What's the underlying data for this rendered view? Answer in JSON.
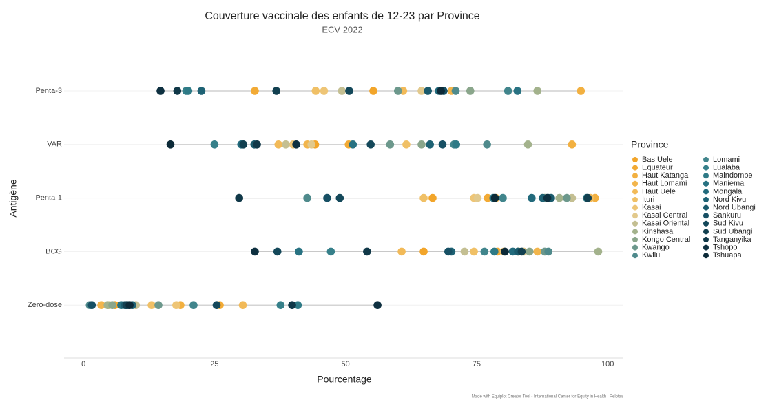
{
  "chart_data": {
    "type": "dot",
    "title": "Couverture vaccinale des enfants de 12-23 par Province",
    "subtitle": "ECV 2022",
    "x_label": "Pourcentage",
    "y_label": "Antigène",
    "legend_title": "Province",
    "caption": "Made with Equiplot Creator Tool - International Center for Equity in Health | Pelotas",
    "categories": [
      "Penta-3",
      "VAR",
      "Penta-1",
      "BCG",
      "Zero-dose"
    ],
    "xlim": [
      -3.7,
      103
    ],
    "xticks": [
      0,
      25,
      50,
      75,
      100
    ],
    "grid": true,
    "legend_position": "right",
    "series": [
      {
        "name": "Bas Uele",
        "color": "#f2a52a",
        "values": [
          55.3,
          44.2,
          66.6,
          64.9,
          6.0
        ]
      },
      {
        "name": "Equateur",
        "color": "#f2aa35",
        "values": [
          32.7,
          50.6,
          77.1,
          79,
          26
        ]
      },
      {
        "name": "Haut Katanga",
        "color": "#f2b040",
        "values": [
          94.9,
          93.2,
          97.6,
          83.0,
          18.5
        ]
      },
      {
        "name": "Haut Lomami",
        "color": "#f2b54c",
        "values": [
          70.2,
          42.7,
          78.7,
          86.6,
          3.4
        ]
      },
      {
        "name": "Haut Uele",
        "color": "#f2ba58",
        "values": [
          61,
          37.2,
          96.7,
          60.7,
          30.4
        ]
      },
      {
        "name": "Ituri",
        "color": "#f0c066",
        "values": [
          44.3,
          61.6,
          64.9,
          74.5,
          13
        ]
      },
      {
        "name": "Kasai",
        "color": "#eec576",
        "values": [
          45.9,
          40.0,
          74.5,
          80.2,
          17.7
        ]
      },
      {
        "name": "Kasai Central",
        "color": "#e2c98c",
        "values": [
          64.5,
          43.5,
          75.2,
          84.0,
          4.9
        ]
      },
      {
        "name": "Kasai Oriental",
        "color": "#c4bf92",
        "values": [
          49.3,
          38.6,
          93.2,
          72.7,
          10
        ]
      },
      {
        "name": "Kinshasa",
        "color": "#a3b28c",
        "values": [
          86.6,
          84.8,
          90.8,
          98.2,
          4.6
        ]
      },
      {
        "name": "Kongo Central",
        "color": "#8aa68b",
        "values": [
          73.8,
          64.5,
          88.0,
          85.1,
          5.5
        ]
      },
      {
        "name": "Kwango",
        "color": "#6c988c",
        "values": [
          60,
          58.5,
          92.2,
          88.0,
          14.3
        ]
      },
      {
        "name": "Kwilu",
        "color": "#4f8a8c",
        "values": [
          71,
          77,
          42.7,
          88.7,
          1.2
        ]
      },
      {
        "name": "Lomami",
        "color": "#41858c",
        "values": [
          81,
          70.7,
          80,
          76.5,
          21
        ]
      },
      {
        "name": "Lualaba",
        "color": "#36808a",
        "values": [
          19.6,
          25,
          88.7,
          47.2,
          37.6
        ]
      },
      {
        "name": "Maindombe",
        "color": "#2e7a86",
        "values": [
          20,
          71.1,
          96.0,
          78.4,
          40.9
        ]
      },
      {
        "name": "Maniema",
        "color": "#287282",
        "values": [
          82.8,
          51.4,
          78.2,
          41.1,
          7.2
        ]
      },
      {
        "name": "Mongala",
        "color": "#226a7c",
        "values": [
          67.8,
          30.1,
          85.5,
          81.9,
          8.5
        ]
      },
      {
        "name": "Nord Kivu",
        "color": "#1e6274",
        "values": [
          22.5,
          66.1,
          87.6,
          70.2,
          9.3
        ]
      },
      {
        "name": "Nord Ubangi",
        "color": "#1a5a6c",
        "values": [
          65.7,
          32.6,
          89.2,
          82.9,
          7.9
        ]
      },
      {
        "name": "Sankuru",
        "color": "#175064",
        "values": [
          68.7,
          68.5,
          46.5,
          69.6,
          1.6
        ]
      },
      {
        "name": "Sud Kivu",
        "color": "#14485a",
        "values": [
          50.7,
          54.8,
          48.9,
          37,
          25.4
        ]
      },
      {
        "name": "Sud Ubangi",
        "color": "#124050",
        "values": [
          36.8,
          30.5,
          96.2,
          83.6,
          8.2
        ]
      },
      {
        "name": "Tanganyika",
        "color": "#103848",
        "values": [
          17.9,
          33.1,
          29.7,
          54.1,
          39.8
        ]
      },
      {
        "name": "Tshopo",
        "color": "#0e3040",
        "values": [
          14.7,
          40.6,
          88.5,
          32.7,
          56.1
        ]
      },
      {
        "name": "Tshuapa",
        "color": "#0c2a38",
        "values": [
          68.2,
          16.6,
          78.5,
          80.4,
          8.8
        ]
      }
    ]
  }
}
